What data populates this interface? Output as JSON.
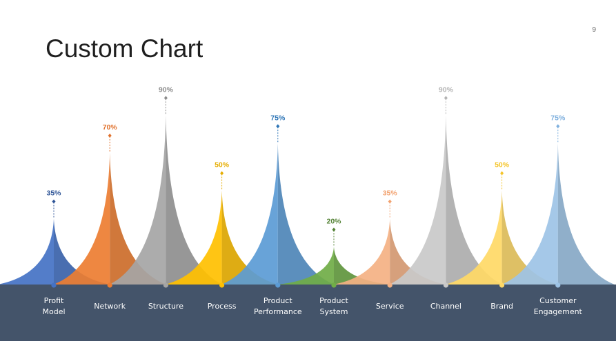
{
  "slide": {
    "title": "Custom Chart",
    "page_number": "9"
  },
  "colors": {
    "band": "#44546a",
    "category_text": "#ffffff"
  },
  "chart_data": {
    "type": "bar",
    "title": "",
    "xlabel": "",
    "ylabel": "",
    "ylim": [
      0,
      100
    ],
    "value_suffix": "%",
    "categories": [
      {
        "label": [
          "Profit",
          "Model"
        ],
        "value": 35,
        "color": "#4472c4",
        "label_color": "#2f5597"
      },
      {
        "label": [
          "Network"
        ],
        "value": 70,
        "color": "#ed7d31",
        "label_color": "#e0702a"
      },
      {
        "label": [
          "Structure"
        ],
        "value": 90,
        "color": "#a5a5a5",
        "label_color": "#8c8c8c"
      },
      {
        "label": [
          "Process"
        ],
        "value": 50,
        "color": "#ffc000",
        "label_color": "#e6ad00"
      },
      {
        "label": [
          "Product",
          "Performance"
        ],
        "value": 75,
        "color": "#5b9bd5",
        "label_color": "#2e75b6"
      },
      {
        "label": [
          "Product",
          "System"
        ],
        "value": 20,
        "color": "#70ad47",
        "label_color": "#548235"
      },
      {
        "label": [
          "Service"
        ],
        "value": 35,
        "color": "#f4b183",
        "label_color": "#f2a16e"
      },
      {
        "label": [
          "Channel"
        ],
        "value": 90,
        "color": "#c9c9c9",
        "label_color": "#b4b4b4"
      },
      {
        "label": [
          "Brand"
        ],
        "value": 50,
        "color": "#ffd966",
        "label_color": "#f5c428"
      },
      {
        "label": [
          "Customer",
          "Engagement"
        ],
        "value": 75,
        "color": "#9dc3e6",
        "label_color": "#7fb0de"
      }
    ],
    "legend": "none",
    "grid": false
  }
}
